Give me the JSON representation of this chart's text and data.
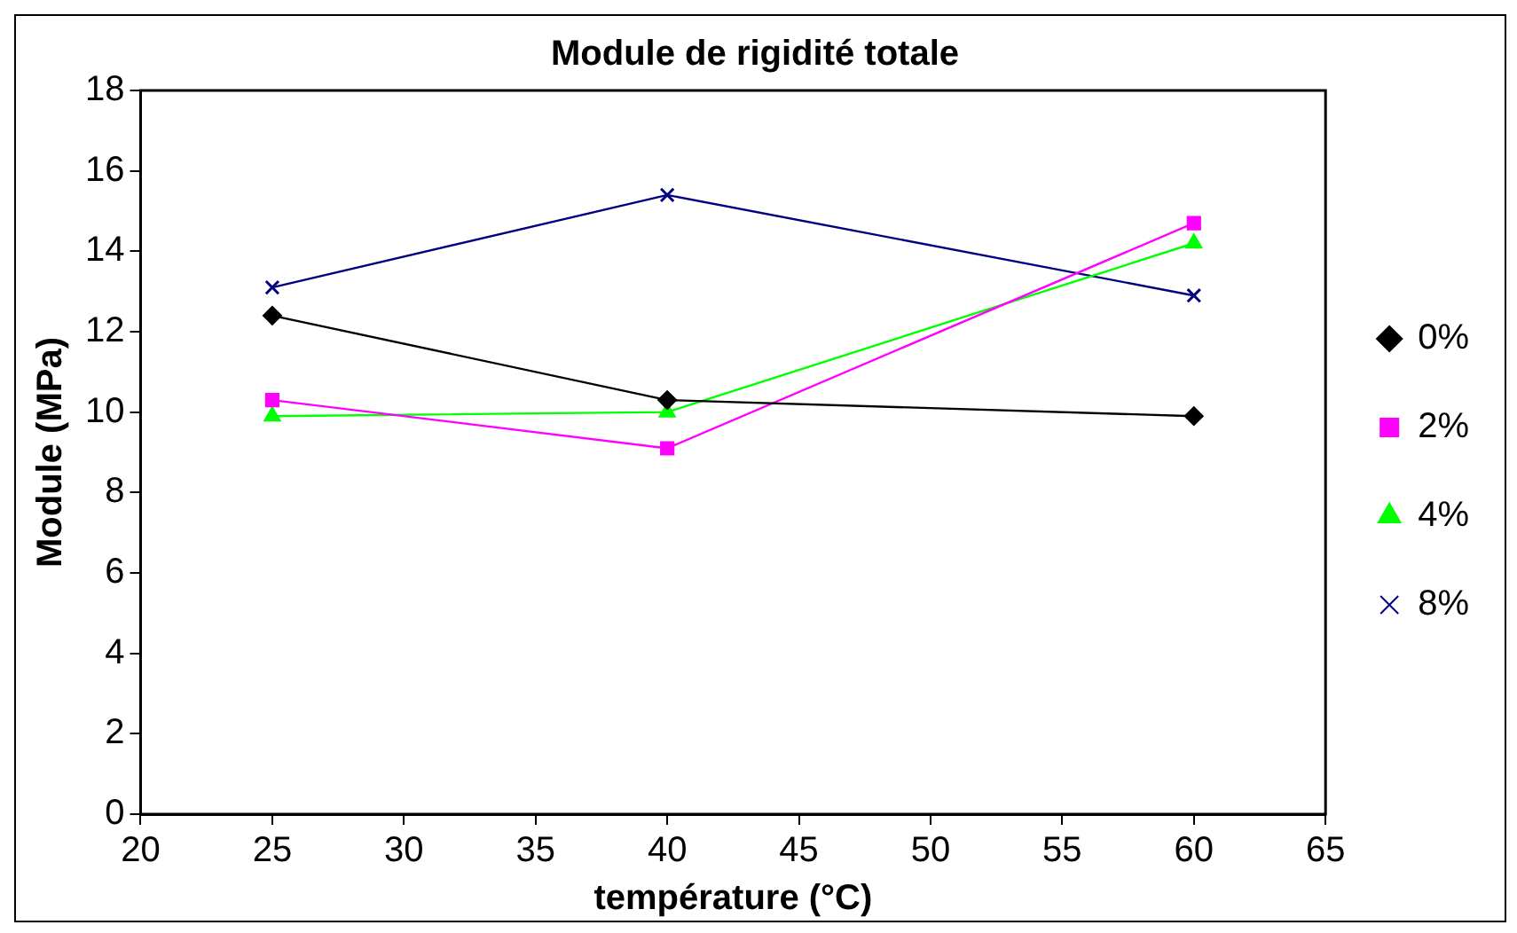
{
  "chart_data": {
    "type": "line",
    "title": "Module de rigidité totale",
    "xlabel": "température (°C)",
    "ylabel": "Module (MPa)",
    "x": [
      25,
      40,
      60
    ],
    "series": [
      {
        "name": "0%",
        "color": "#000000",
        "marker": "diamond",
        "values": [
          12.4,
          10.3,
          9.9
        ]
      },
      {
        "name": "2%",
        "color": "#ff00ff",
        "marker": "square",
        "values": [
          10.3,
          9.1,
          14.7
        ]
      },
      {
        "name": "4%",
        "color": "#00ff00",
        "marker": "triangle",
        "values": [
          9.9,
          10.0,
          14.2
        ]
      },
      {
        "name": "8%",
        "color": "#000080",
        "marker": "cross",
        "values": [
          13.1,
          15.4,
          12.9
        ]
      }
    ],
    "xlim": [
      20,
      65
    ],
    "xticks": [
      20,
      25,
      30,
      35,
      40,
      45,
      50,
      55,
      60,
      65
    ],
    "ylim": [
      0,
      18
    ],
    "yticks": [
      0,
      2,
      4,
      6,
      8,
      10,
      12,
      14,
      16,
      18
    ],
    "grid": false,
    "legend": "right",
    "line_style": "solid"
  }
}
